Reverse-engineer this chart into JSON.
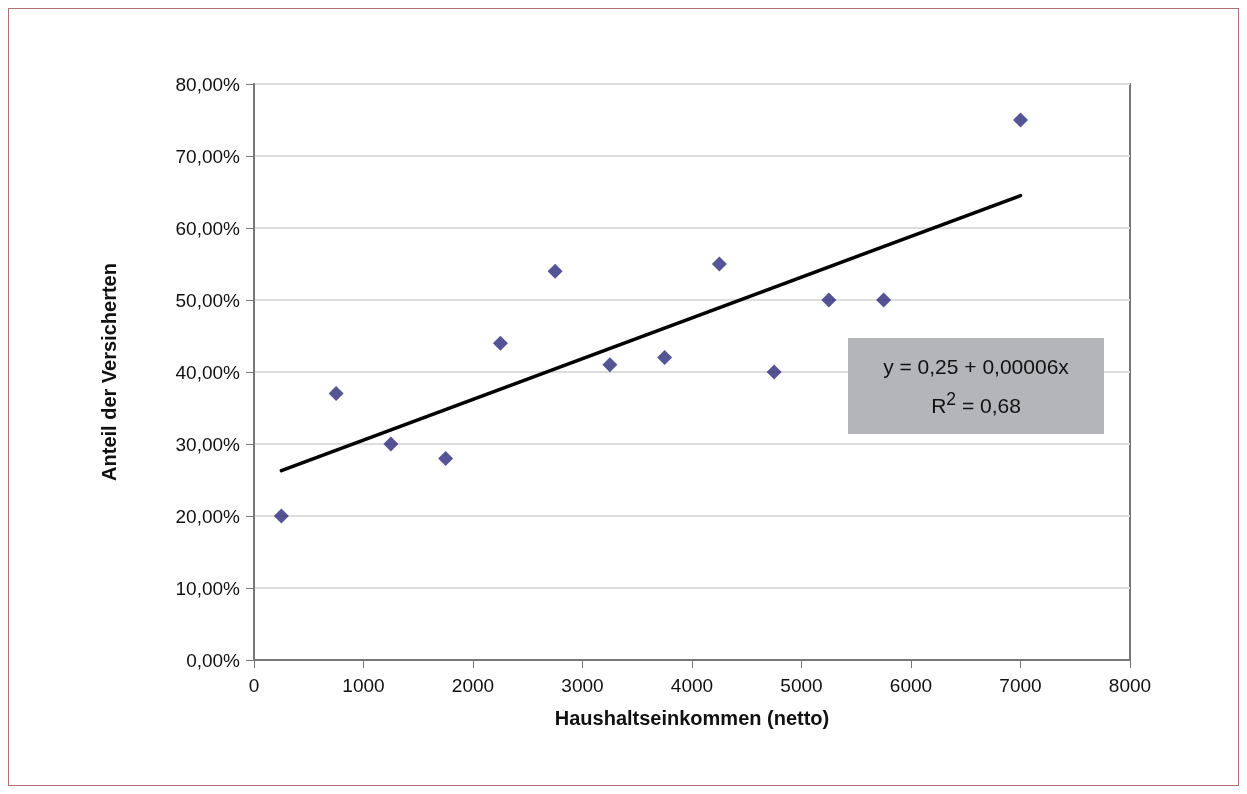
{
  "chart_data": {
    "type": "scatter",
    "xlabel": "Haushaltseinkommen (netto)",
    "ylabel": "Anteil der Versicherten",
    "series": [
      {
        "type": "scatter",
        "color": "#2b2a7c",
        "marker": "diamond",
        "x": [
          250,
          750,
          1250,
          1750,
          2250,
          2750,
          3250,
          3750,
          4250,
          4750,
          5250,
          5750,
          7000
        ],
        "values": [
          20,
          37,
          30,
          28,
          44,
          54,
          41,
          42,
          55,
          40,
          50,
          50,
          75
        ]
      },
      {
        "type": "line",
        "color": "#000000",
        "marker": "none",
        "line_style": "solid",
        "x": [
          250,
          7000
        ],
        "values": [
          26.3,
          64.5
        ]
      }
    ],
    "xlim": [
      0,
      8000
    ],
    "xticks": [
      0,
      1000,
      2000,
      3000,
      4000,
      5000,
      6000,
      7000,
      8000
    ],
    "ylim": [
      0,
      80
    ],
    "yticks": [
      {
        "value": 0,
        "label": "0,00%"
      },
      {
        "value": 10,
        "label": "10,00%"
      },
      {
        "value": 20,
        "label": "20,00%"
      },
      {
        "value": 30,
        "label": "30,00%"
      },
      {
        "value": 40,
        "label": "40,00%"
      },
      {
        "value": 50,
        "label": "50,00%"
      },
      {
        "value": 60,
        "label": "60,00%"
      },
      {
        "value": 70,
        "label": "70,00%"
      },
      {
        "value": 80,
        "label": "80,00%"
      }
    ],
    "grid": "y",
    "annotations": [
      "y = 0,25 + 0,00006x",
      "R$^{2}$ = 0,68"
    ]
  }
}
